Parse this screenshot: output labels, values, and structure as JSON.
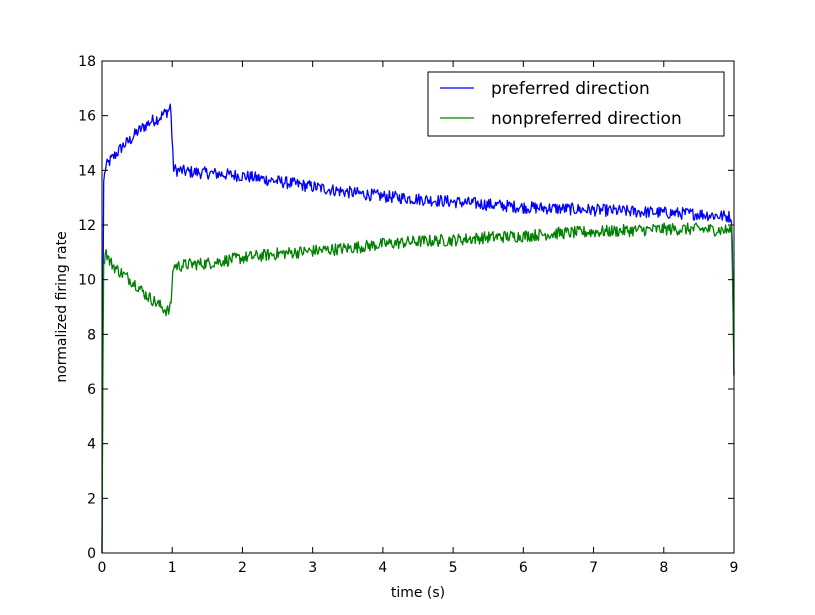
{
  "chart_data": {
    "type": "line",
    "xlabel": "time (s)",
    "ylabel": "normalized firing rate",
    "xlim": [
      0,
      9
    ],
    "ylim": [
      0,
      18
    ],
    "xticks": [
      0,
      1,
      2,
      3,
      4,
      5,
      6,
      7,
      8,
      9
    ],
    "yticks": [
      0,
      2,
      4,
      6,
      8,
      10,
      12,
      14,
      16,
      18
    ],
    "grid": false,
    "legend_position": "top-right",
    "series": [
      {
        "name": "preferred direction",
        "color": "#0000ff",
        "x": [
          0,
          0.02,
          0.05,
          0.1,
          0.2,
          0.3,
          0.4,
          0.5,
          0.6,
          0.7,
          0.8,
          0.9,
          0.95,
          0.98,
          1.0,
          1.02,
          1.05,
          1.1,
          1.2,
          1.5,
          2.0,
          2.5,
          3.0,
          3.5,
          4.0,
          4.5,
          5.0,
          5.5,
          6.0,
          6.5,
          7.0,
          7.5,
          8.0,
          8.5,
          8.97,
          9.0
        ],
        "y": [
          0,
          13.5,
          14.1,
          14.3,
          14.6,
          14.9,
          15.1,
          15.4,
          15.6,
          15.8,
          15.9,
          16.1,
          16.2,
          16.4,
          14.9,
          14.1,
          14.0,
          14.0,
          13.95,
          13.9,
          13.8,
          13.6,
          13.4,
          13.2,
          13.05,
          12.95,
          12.85,
          12.75,
          12.65,
          12.6,
          12.55,
          12.5,
          12.45,
          12.4,
          12.3,
          6.5
        ]
      },
      {
        "name": "nonpreferred direction",
        "color": "#008000",
        "x": [
          0,
          0.02,
          0.05,
          0.1,
          0.2,
          0.3,
          0.4,
          0.5,
          0.6,
          0.7,
          0.8,
          0.9,
          0.95,
          0.98,
          1.0,
          1.02,
          1.05,
          1.1,
          1.2,
          1.5,
          2.0,
          2.5,
          3.0,
          3.5,
          4.0,
          4.5,
          5.0,
          5.5,
          6.0,
          6.5,
          7.0,
          7.5,
          8.0,
          8.5,
          8.97,
          9.0
        ],
        "y": [
          0,
          10.5,
          11.1,
          10.7,
          10.4,
          10.2,
          10.0,
          9.8,
          9.5,
          9.3,
          9.1,
          8.9,
          8.85,
          9.0,
          10.0,
          10.5,
          10.5,
          10.5,
          10.55,
          10.6,
          10.8,
          10.95,
          11.05,
          11.15,
          11.3,
          11.4,
          11.45,
          11.55,
          11.6,
          11.7,
          11.75,
          11.8,
          11.85,
          11.85,
          11.8,
          6.5
        ]
      }
    ]
  }
}
